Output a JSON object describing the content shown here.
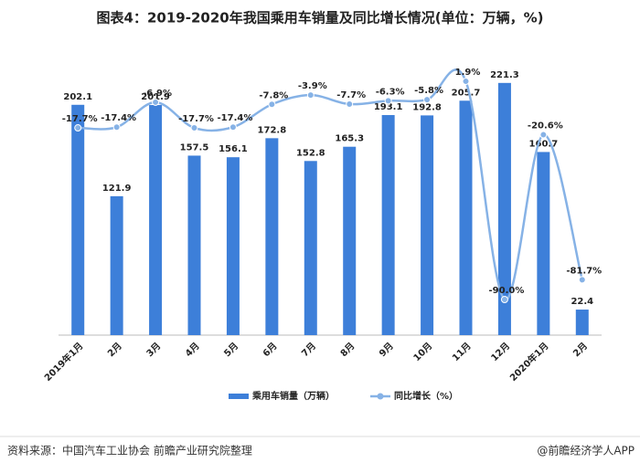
{
  "chart_data": {
    "type": "bar_line",
    "title": "图表4：2019-2020年我国乘用车销量及同比增长情况(单位：万辆，%)",
    "categories": [
      "2019年1月",
      "2月",
      "3月",
      "4月",
      "5月",
      "6月",
      "7月",
      "8月",
      "9月",
      "10月",
      "11月",
      "12月",
      "2020年1月",
      "2月"
    ],
    "series": [
      {
        "name": "乘用车销量（万辆）",
        "color": "#3d7fd9",
        "type": "bar",
        "values": [
          202.1,
          121.9,
          201.9,
          157.5,
          156.1,
          172.8,
          152.8,
          165.3,
          193.1,
          192.8,
          205.7,
          221.3,
          160.7,
          22.4
        ]
      },
      {
        "name": "同比增长（%）",
        "color": "#86b2e6",
        "type": "line",
        "axis": "y2",
        "values": [
          -17.7,
          -17.4,
          -6.9,
          -17.7,
          -17.4,
          -7.8,
          -3.9,
          -7.7,
          -6.3,
          -5.8,
          1.9,
          -90.0,
          -20.6,
          -81.7
        ],
        "value_labels": [
          "-17.7%",
          "-17.4%",
          "-6.9%",
          "-17.7%",
          "-17.4%",
          "-7.8%",
          "-3.9%",
          "-7.7%",
          "-6.3%",
          "-5.8%",
          "1.9%",
          "-90.0%",
          "-20.6%",
          "-81.7%"
        ]
      }
    ],
    "ylim": [
      0,
      250
    ],
    "y2lim": [
      -105,
      15
    ],
    "source": "资料来源：中国汽车工业协会 前瞻产业研究院整理",
    "credit": "@前瞻经济学人APP"
  }
}
